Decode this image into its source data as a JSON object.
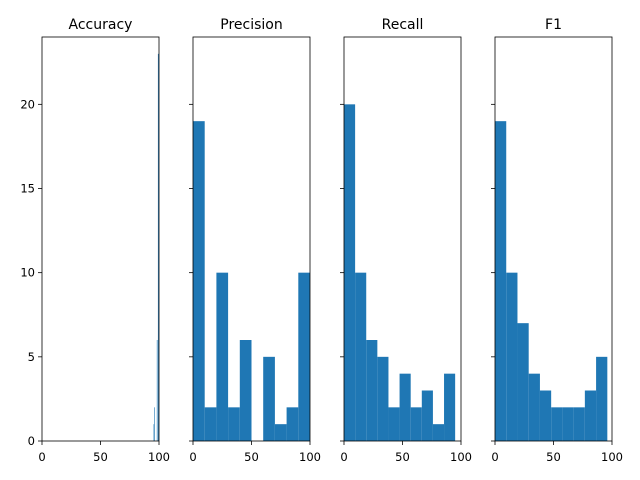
{
  "chart_data": {
    "type": "bar",
    "subtype": "histogram-grid",
    "share_y": true,
    "ylim": [
      0,
      24
    ],
    "yticks": [
      0,
      5,
      10,
      15,
      20
    ],
    "bar_color": "#1f77b4",
    "panels": [
      {
        "title": "Accuracy",
        "xlim": [
          0,
          100
        ],
        "xticks": [
          0,
          50,
          100
        ],
        "bins": [
          {
            "x0": 95.4,
            "x1": 95.86,
            "count": 1
          },
          {
            "x0": 95.86,
            "x1": 96.32,
            "count": 2
          },
          {
            "x0": 96.32,
            "x1": 96.78,
            "count": 0
          },
          {
            "x0": 96.78,
            "x1": 97.24,
            "count": 0
          },
          {
            "x0": 97.24,
            "x1": 97.7,
            "count": 0
          },
          {
            "x0": 97.7,
            "x1": 98.16,
            "count": 0
          },
          {
            "x0": 98.16,
            "x1": 98.62,
            "count": 6
          },
          {
            "x0": 98.62,
            "x1": 99.08,
            "count": 0
          },
          {
            "x0": 99.08,
            "x1": 99.54,
            "count": 23
          },
          {
            "x0": 99.54,
            "x1": 100.0,
            "count": 0
          }
        ]
      },
      {
        "title": "Precision",
        "xlim": [
          0,
          100
        ],
        "xticks": [
          0,
          50,
          100
        ],
        "bins": [
          {
            "x0": 0,
            "x1": 10,
            "count": 19
          },
          {
            "x0": 10,
            "x1": 20,
            "count": 2
          },
          {
            "x0": 20,
            "x1": 30,
            "count": 10
          },
          {
            "x0": 30,
            "x1": 40,
            "count": 2
          },
          {
            "x0": 40,
            "x1": 50,
            "count": 6
          },
          {
            "x0": 50,
            "x1": 60,
            "count": 0
          },
          {
            "x0": 60,
            "x1": 70,
            "count": 5
          },
          {
            "x0": 70,
            "x1": 80,
            "count": 1
          },
          {
            "x0": 80,
            "x1": 90,
            "count": 2
          },
          {
            "x0": 90,
            "x1": 100,
            "count": 10
          }
        ]
      },
      {
        "title": "Recall",
        "xlim": [
          0,
          100
        ],
        "xticks": [
          0,
          50,
          100
        ],
        "bins": [
          {
            "x0": 0,
            "x1": 9.5,
            "count": 20
          },
          {
            "x0": 9.5,
            "x1": 19,
            "count": 10
          },
          {
            "x0": 19,
            "x1": 28.5,
            "count": 6
          },
          {
            "x0": 28.5,
            "x1": 38,
            "count": 5
          },
          {
            "x0": 38,
            "x1": 47.5,
            "count": 2
          },
          {
            "x0": 47.5,
            "x1": 57,
            "count": 4
          },
          {
            "x0": 57,
            "x1": 66.5,
            "count": 2
          },
          {
            "x0": 66.5,
            "x1": 76,
            "count": 3
          },
          {
            "x0": 76,
            "x1": 85.5,
            "count": 1
          },
          {
            "x0": 85.5,
            "x1": 95,
            "count": 4
          }
        ]
      },
      {
        "title": "F1",
        "xlim": [
          0,
          100
        ],
        "xticks": [
          0,
          50,
          100
        ],
        "bins": [
          {
            "x0": 0,
            "x1": 9.6,
            "count": 19
          },
          {
            "x0": 9.6,
            "x1": 19.2,
            "count": 10
          },
          {
            "x0": 19.2,
            "x1": 28.8,
            "count": 7
          },
          {
            "x0": 28.8,
            "x1": 38.4,
            "count": 4
          },
          {
            "x0": 38.4,
            "x1": 48,
            "count": 3
          },
          {
            "x0": 48,
            "x1": 57.6,
            "count": 2
          },
          {
            "x0": 57.6,
            "x1": 67.2,
            "count": 2
          },
          {
            "x0": 67.2,
            "x1": 76.8,
            "count": 2
          },
          {
            "x0": 76.8,
            "x1": 86.4,
            "count": 3
          },
          {
            "x0": 86.4,
            "x1": 96,
            "count": 5
          }
        ]
      }
    ]
  }
}
